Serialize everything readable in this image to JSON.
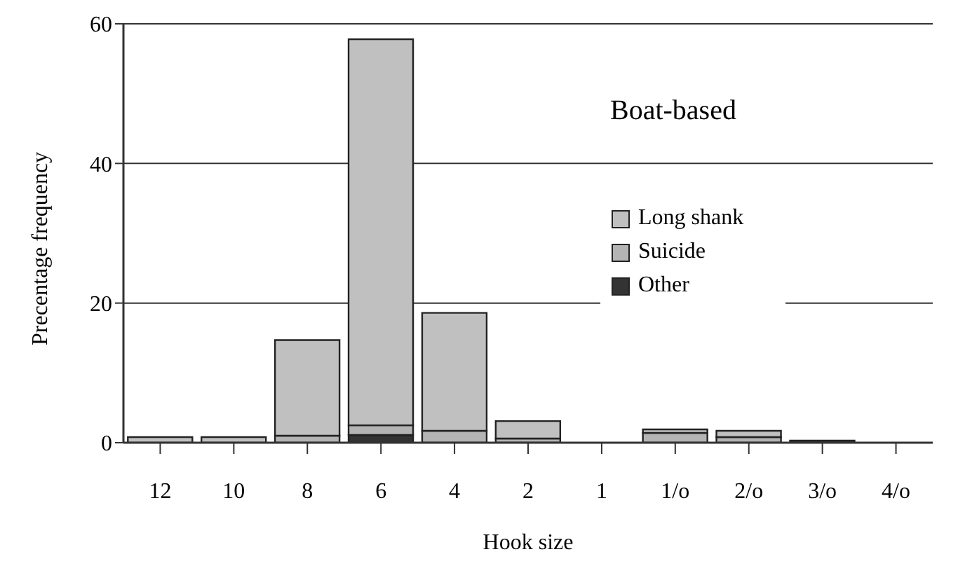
{
  "chart_data": {
    "type": "bar",
    "title": "Boat-based",
    "xlabel": "Hook size",
    "ylabel": "Precentage frequency",
    "categories": [
      "12",
      "10",
      "8",
      "6",
      "4",
      "2",
      "1",
      "1/o",
      "2/o",
      "3/o",
      "4/o"
    ],
    "stacked": true,
    "ylim": [
      0,
      60
    ],
    "yticks": [
      0,
      20,
      40,
      60
    ],
    "grid": "y",
    "legend": "right",
    "series": [
      {
        "name": "Other",
        "color": "#333333",
        "values": [
          0,
          0,
          0,
          1.1,
          0,
          0,
          0,
          0,
          0,
          0.3,
          0
        ]
      },
      {
        "name": "Suicide",
        "color": "#b4b4b4",
        "values": [
          0,
          0,
          1.0,
          1.4,
          1.7,
          0.6,
          0,
          1.4,
          0.8,
          0,
          0
        ]
      },
      {
        "name": "Long shank",
        "color": "#c0c0c0",
        "values": [
          0.8,
          0.8,
          13.7,
          55.3,
          16.9,
          2.5,
          0,
          0.5,
          0.9,
          0,
          0
        ]
      }
    ]
  }
}
